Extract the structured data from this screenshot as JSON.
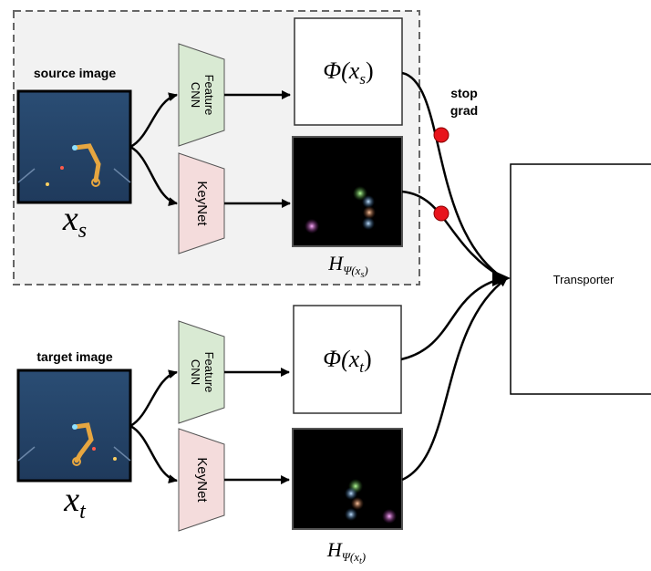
{
  "source": {
    "label": "source image",
    "symbol": {
      "base": "x",
      "sub": "s"
    },
    "feature_net": [
      "Feature",
      "CNN"
    ],
    "keynet": "KeyNet",
    "features": {
      "pre": "Φ(x",
      "sub": "s",
      "post": ")"
    },
    "heatmap": {
      "base": "H",
      "sub_pre": "Ψ(x",
      "sub_sub": "s",
      "sub_post": ")"
    }
  },
  "target": {
    "label": "target image",
    "symbol": {
      "base": "x",
      "sub": "t"
    },
    "feature_net": [
      "Feature",
      "CNN"
    ],
    "keynet": "KeyNet",
    "features": {
      "pre": "Φ(x",
      "sub": "t",
      "post": ")"
    },
    "heatmap": {
      "base": "H",
      "sub_pre": "Ψ(x",
      "sub_sub": "t",
      "sub_post": ")"
    }
  },
  "stop_grad": [
    "stop",
    "grad"
  ],
  "transporter": "Transporter"
}
